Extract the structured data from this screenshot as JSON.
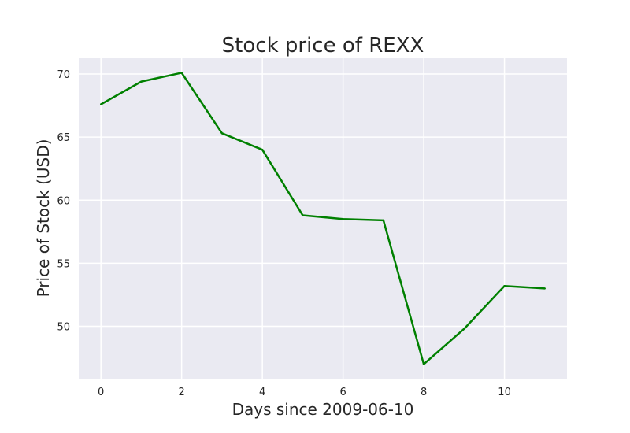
{
  "chart_data": {
    "type": "line",
    "title": "Stock price of REXX",
    "xlabel": "Days since 2009-06-10",
    "ylabel": "Price of Stock (USD)",
    "x": [
      0,
      1,
      2,
      3,
      4,
      5,
      6,
      7,
      8,
      9,
      10,
      11
    ],
    "series": [
      {
        "values": [
          67.6,
          69.4,
          70.1,
          65.3,
          64.0,
          58.8,
          58.5,
          58.4,
          47.0,
          49.8,
          53.2,
          53.0
        ],
        "color": "#008000"
      }
    ],
    "xticks": [
      0,
      2,
      4,
      6,
      8,
      10
    ],
    "yticks": [
      50,
      55,
      60,
      65,
      70
    ],
    "xlim": [
      -0.55,
      11.55
    ],
    "ylim": [
      45.85,
      71.25
    ],
    "grid": true,
    "background_color": "#eaeaf2",
    "grid_color": "#ffffff"
  }
}
